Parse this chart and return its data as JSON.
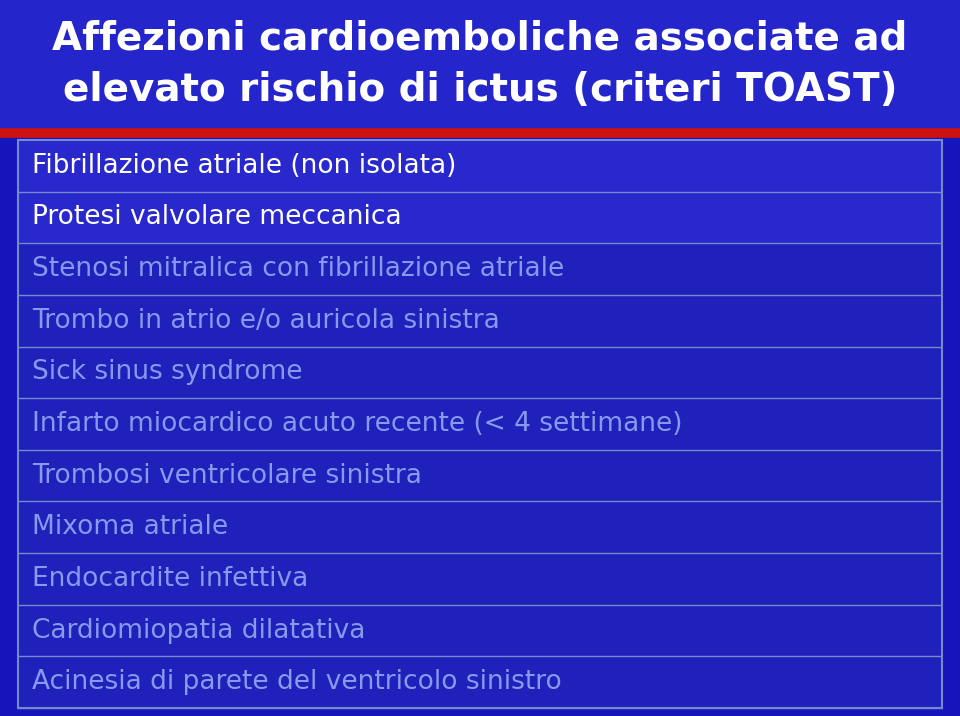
{
  "title_line1": "Affezioni cardioemboliche associate ad",
  "title_line2": "elevato rischio di ictus (criteri TOAST)",
  "title_color": "#FFFFFF",
  "title_bg_color": "#2525CC",
  "red_line_color": "#CC1111",
  "bg_color": "#1515BB",
  "border_color": "#7788CC",
  "rows": [
    {
      "text": "Fibrillazione atriale (non isolata)",
      "bright": true
    },
    {
      "text": "Protesi valvolare meccanica",
      "bright": true
    },
    {
      "text": "Stenosi mitralica con fibrillazione atriale",
      "bright": false
    },
    {
      "text": "Trombo in atrio e/o auricola sinistra",
      "bright": false
    },
    {
      "text": "Sick sinus syndrome",
      "bright": false
    },
    {
      "text": "Infarto miocardico acuto recente (< 4 settimane)",
      "bright": false
    },
    {
      "text": "Trombosi ventricolare sinistra",
      "bright": false
    },
    {
      "text": "Mixoma atriale",
      "bright": false
    },
    {
      "text": "Endocardite infettiva",
      "bright": false
    },
    {
      "text": "Cardiomiopatia dilatativa",
      "bright": false
    },
    {
      "text": "Acinesia di parete del ventricolo sinistro",
      "bright": false
    }
  ],
  "bright_text_color": "#FFFFFF",
  "dim_text_color": "#8899EE",
  "title_fontsize": 28,
  "row_fontsize": 19
}
